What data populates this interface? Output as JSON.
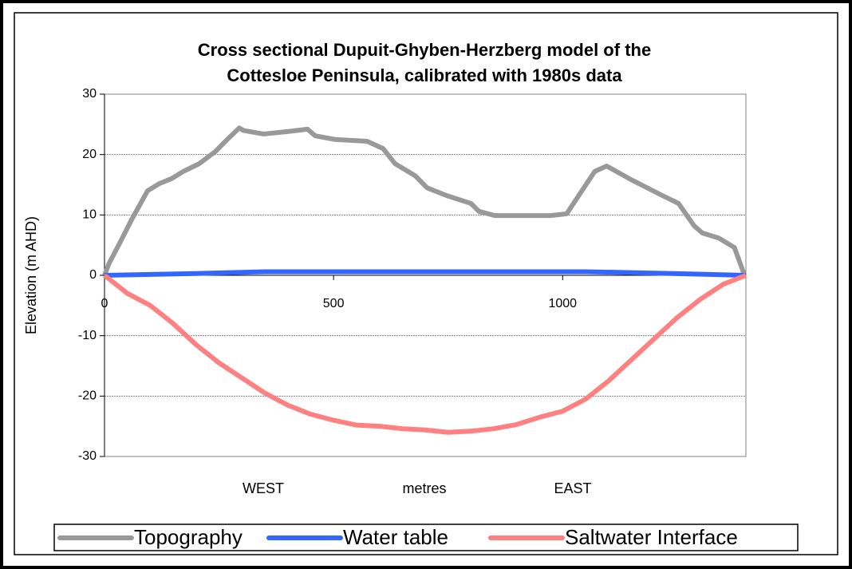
{
  "chart_data": {
    "type": "line",
    "title": [
      "Cross sectional Dupuit-Ghyben-Herzberg model of the",
      "Cottesloe Peninsula, calibrated with 1980s data"
    ],
    "ylabel": "Elevation (m AHD)",
    "xlabel": "metres",
    "annotations": [
      "WEST",
      "EAST"
    ],
    "xlim": [
      0,
      1400
    ],
    "xticks": [
      0,
      500,
      1000
    ],
    "ylim": [
      -30,
      30
    ],
    "yticks": [
      -30,
      -20,
      -10,
      0,
      10,
      20,
      30
    ],
    "grid": true,
    "legend": "bottom",
    "series": [
      {
        "name": "Topography",
        "color": "#999999",
        "x": [
          0,
          10,
          33,
          59,
          94,
          120,
          146,
          172,
          207,
          242,
          268,
          294,
          303,
          347,
          399,
          443,
          460,
          503,
          573,
          608,
          634,
          678,
          704,
          747,
          800,
          817,
          852,
          887,
          922,
          974,
          1009,
          1035,
          1070,
          1096,
          1148,
          1218,
          1253,
          1287,
          1305,
          1340,
          1375,
          1397
        ],
        "values": [
          0,
          2,
          5.3,
          9.2,
          14,
          15.2,
          16,
          17.2,
          18.5,
          20.5,
          22.5,
          24.4,
          24,
          23.4,
          23.8,
          24.2,
          23.1,
          22.5,
          22.2,
          21,
          18.5,
          16.5,
          14.5,
          13.2,
          11.9,
          10.6,
          9.9,
          9.9,
          9.9,
          9.9,
          10.2,
          13.2,
          17.2,
          18.1,
          15.9,
          13.2,
          11.9,
          8.2,
          7,
          6.2,
          4.6,
          0
        ]
      },
      {
        "name": "Water table",
        "color": "#3366ff",
        "x": [
          0,
          200,
          350,
          1050,
          1240,
          1400
        ],
        "values": [
          0,
          0.3,
          0.6,
          0.6,
          0.3,
          0
        ]
      },
      {
        "name": "Saltwater Interface",
        "color": "#ff8080",
        "x": [
          0,
          50,
          100,
          150,
          200,
          250,
          300,
          350,
          400,
          450,
          500,
          550,
          600,
          650,
          700,
          750,
          800,
          850,
          900,
          950,
          1000,
          1050,
          1100,
          1150,
          1200,
          1250,
          1300,
          1350,
          1400
        ],
        "values": [
          0,
          -3,
          -5,
          -8,
          -11.5,
          -14.5,
          -17,
          -19.5,
          -21.5,
          -23,
          -24,
          -24.8,
          -25,
          -25.4,
          -25.6,
          -26,
          -25.8,
          -25.4,
          -24.7,
          -23.5,
          -22.5,
          -20.5,
          -17.5,
          -14,
          -10.5,
          -7,
          -4,
          -1.5,
          0
        ]
      }
    ]
  }
}
